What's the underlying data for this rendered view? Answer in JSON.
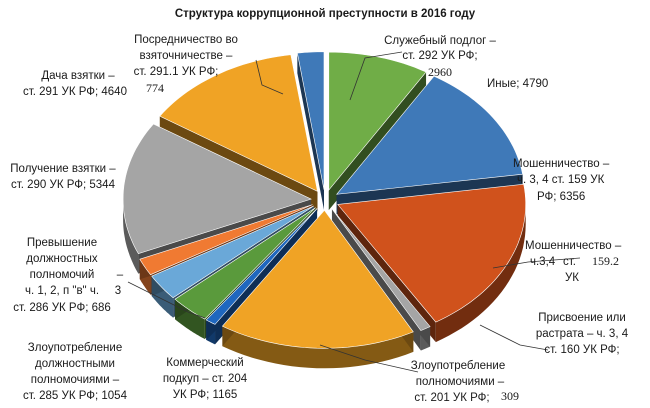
{
  "chart_data": {
    "type": "pie",
    "title": "Структура коррупционной преступности в 2016 году",
    "slices": [
      {
        "name": "Служебный подлог – ст. 292 УК РФ;",
        "value": 2960,
        "color": "#70ad47",
        "value_label": "2960"
      },
      {
        "name": "Иные;",
        "value": 4790,
        "color": "#3f79b8",
        "value_label": "4790"
      },
      {
        "name": "Мошенничество – ч. 3, 4 ст. 159 УК РФ;",
        "value": 6356,
        "color": "#d0521c",
        "value_label": "6356"
      },
      {
        "name": "Мошенничество – ч.3,4 ст. 159.2 УК",
        "value": 309,
        "color": "#a5a5a5",
        "value_label": ""
      },
      {
        "name": "Присвоение или растрата – ч. 3, 4 ст. 160 УК РФ;",
        "value": 5800,
        "color": "#f0a325",
        "value_label": ""
      },
      {
        "name": "Злоупотребление полномочиями – ст. 201 УК РФ;",
        "value": 309,
        "color": "#1f67bf",
        "value_label": "309"
      },
      {
        "name": "Коммерческий подкуп – ст. 204 УК РФ;",
        "value": 1165,
        "color": "#5a9a3c",
        "value_label": "1165"
      },
      {
        "name": "Злоупотребление должностными полномочиями – ст. 285 УК РФ;",
        "value": 1054,
        "color": "#6aa8d8",
        "value_label": "1054"
      },
      {
        "name": "Превышение должностных полномочий – ч. 1, 2, п \"в\" ч. 3 ст. 286 УК РФ;",
        "value": 686,
        "color": "#f07a32",
        "value_label": "686"
      },
      {
        "name": "Получение взятки – ст. 290 УК РФ;",
        "value": 5344,
        "color": "#a5a5a5",
        "value_label": "5344"
      },
      {
        "name": "Дача взятки – ст. 291 УК РФ;",
        "value": 4640,
        "color": "#f0a325",
        "value_label": "4640"
      },
      {
        "name": "Посредничество во взяточничестве – ст. 291.1 УК РФ;",
        "value": 774,
        "color": "#3f79b8",
        "value_label": "774"
      }
    ],
    "labels": {
      "title": "Структура коррупционной преступности в 2016 году",
      "podlog_1": "Служебный подлог –",
      "podlog_2": "ст. 292 УК РФ;",
      "podlog_3": "2960",
      "inye": "Иные; 4790",
      "mosh1_1": "Мошенничество –",
      "mosh1_2": "ч. 3, 4 ст. 159 УК",
      "mosh1_3": "РФ; 6356",
      "mosh2_1": "Мошенничество –",
      "mosh2_2": "ч.3,4",
      "mosh2_3": "ст.",
      "mosh2_4": "159.2",
      "mosh2_5": "УК",
      "prisv_1": "Присвоение или",
      "prisv_2": "растрата – ч. 3, 4",
      "prisv_3": "ст. 160 УК РФ;",
      "zlpol_1": "Злоупотребление",
      "zlpol_2": "полномочиями –",
      "zlpol_3": "ст. 201 УК РФ;",
      "zlpol_4": "309",
      "kompod_1": "Коммерческий",
      "kompod_2": "подкуп – ст. 204",
      "kompod_3": "УК РФ; 1165",
      "zldol_1": "Злоупотребление",
      "zldol_2": "должностными",
      "zldol_3": "полномочиями –",
      "zldol_4": "ст. 285 УК РФ; 1054",
      "prev_1": "Превышение",
      "prev_2": "должностных",
      "prev_3": "полномочий",
      "prev_4": "–",
      "prev_5": "ч. 1, 2, п \"в\" ч.",
      "prev_6": "3",
      "prev_7": "ст. 286 УК РФ; 686",
      "polvz_1": "Получение взятки –",
      "polvz_2": "ст. 290 УК РФ; 5344",
      "dacha_1": "Дача взятки –",
      "dacha_2": "ст. 291 УК РФ; 4640",
      "posr_1": "Посредничество во",
      "posr_2": "взяточничестве –",
      "posr_3": "ст. 291.1 УК РФ;",
      "posr_4": "774"
    }
  }
}
